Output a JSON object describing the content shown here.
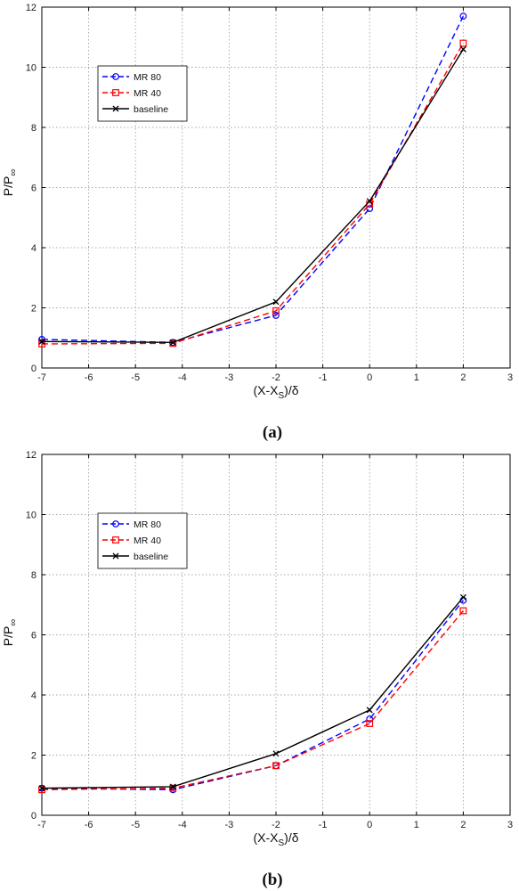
{
  "chart_data": [
    {
      "type": "line",
      "panel_label": "(a)",
      "xlabel": {
        "main": "(X-X",
        "sub": "S",
        "tail": ")/δ"
      },
      "ylabel": {
        "main": "P/P",
        "sub": "∞"
      },
      "xlim": [
        -7,
        3
      ],
      "ylim": [
        0,
        12
      ],
      "xticks": [
        -7,
        -6,
        -5,
        -4,
        -3,
        -2,
        -1,
        0,
        1,
        2,
        3
      ],
      "yticks": [
        0,
        2,
        4,
        6,
        8,
        10,
        12
      ],
      "grid": true,
      "legend_position": "upper-left",
      "series": [
        {
          "name": "MR 80",
          "color": "#0000ff",
          "marker": "circle",
          "dash": true,
          "x": [
            -7,
            -4.2,
            -2,
            0,
            2
          ],
          "y": [
            0.95,
            0.85,
            1.75,
            5.3,
            11.7
          ]
        },
        {
          "name": "MR 40",
          "color": "#ff0000",
          "marker": "square",
          "dash": true,
          "x": [
            -7,
            -4.2,
            -2,
            0,
            2
          ],
          "y": [
            0.8,
            0.82,
            1.9,
            5.45,
            10.8
          ]
        },
        {
          "name": "baseline",
          "color": "#000000",
          "marker": "x",
          "dash": false,
          "x": [
            -7,
            -4.2,
            -2,
            0,
            2
          ],
          "y": [
            0.88,
            0.85,
            2.2,
            5.55,
            10.6
          ]
        }
      ]
    },
    {
      "type": "line",
      "panel_label": "(b)",
      "xlabel": {
        "main": "(X-X",
        "sub": "S",
        "tail": ")/δ"
      },
      "ylabel": {
        "main": "P/P",
        "sub": "∞"
      },
      "xlim": [
        -7,
        3
      ],
      "ylim": [
        0,
        12
      ],
      "xticks": [
        -7,
        -6,
        -5,
        -4,
        -3,
        -2,
        -1,
        0,
        1,
        2,
        3
      ],
      "yticks": [
        0,
        2,
        4,
        6,
        8,
        10,
        12
      ],
      "grid": true,
      "legend_position": "upper-left",
      "series": [
        {
          "name": "MR 80",
          "color": "#0000ff",
          "marker": "circle",
          "dash": true,
          "x": [
            -7,
            -4.2,
            -2,
            0,
            2
          ],
          "y": [
            0.9,
            0.85,
            1.65,
            3.2,
            7.15
          ]
        },
        {
          "name": "MR 40",
          "color": "#ff0000",
          "marker": "square",
          "dash": true,
          "x": [
            -7,
            -4.2,
            -2,
            0,
            2
          ],
          "y": [
            0.85,
            0.9,
            1.65,
            3.05,
            6.8
          ]
        },
        {
          "name": "baseline",
          "color": "#000000",
          "marker": "x",
          "dash": false,
          "x": [
            -7,
            -4.2,
            -2,
            0,
            2
          ],
          "y": [
            0.9,
            0.95,
            2.05,
            3.5,
            7.25
          ]
        }
      ]
    }
  ]
}
